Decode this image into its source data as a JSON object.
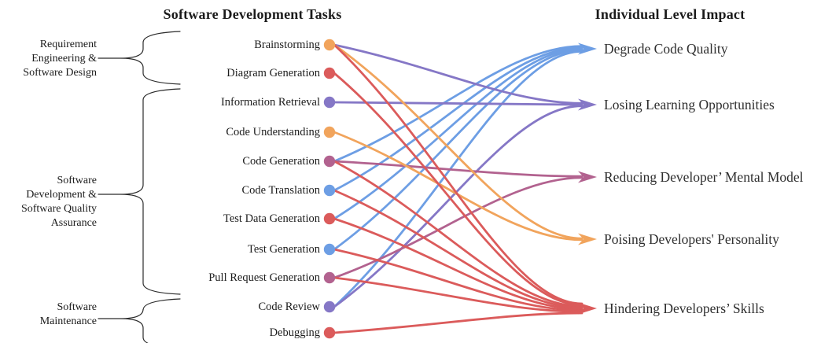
{
  "header": {
    "tasks_title": "Software Development Tasks",
    "impact_title": "Individual Level Impact"
  },
  "groups": [
    {
      "label": "Requirement\nEngineering &\nSoftware Design",
      "task_indexes": [
        0,
        1
      ]
    },
    {
      "label": "Software\nDevelopment  &\nSoftware Quality\nAssurance",
      "task_indexes": [
        2,
        3,
        4,
        5,
        6,
        7,
        8
      ]
    },
    {
      "label": "Software\nMaintenance",
      "task_indexes": [
        9,
        10
      ]
    }
  ],
  "tasks": [
    {
      "label": "Brainstorming",
      "dot_color": "#F1A45C"
    },
    {
      "label": "Diagram Generation",
      "dot_color": "#DB5B5B"
    },
    {
      "label": "Information Retrieval",
      "dot_color": "#8577C6"
    },
    {
      "label": "Code Understanding",
      "dot_color": "#F1A45C"
    },
    {
      "label": "Code Generation",
      "dot_color": "#B2628F"
    },
    {
      "label": "Code Translation",
      "dot_color": "#6D9EE4"
    },
    {
      "label": "Test Data Generation",
      "dot_color": "#DB5B5B"
    },
    {
      "label": "Test Generation",
      "dot_color": "#6D9EE4"
    },
    {
      "label": "Pull Request Generation",
      "dot_color": "#B2628F"
    },
    {
      "label": "Code Review",
      "dot_color": "#8577C6"
    },
    {
      "label": "Debugging",
      "dot_color": "#DB5B5B"
    }
  ],
  "impacts": [
    {
      "label": "Degrade Code Quality",
      "color": "#6D9EE4"
    },
    {
      "label": "Losing Learning Opportunities",
      "color": "#8577C6"
    },
    {
      "label": "Reducing Developer’ Mental Model",
      "color": "#B2628F"
    },
    {
      "label": "Poising Developers' Personality",
      "color": "#F1A45C"
    },
    {
      "label": "Hindering Developers’ Skills",
      "color": "#DB5B5B"
    }
  ],
  "edges": [
    {
      "task": 0,
      "impact": 1
    },
    {
      "task": 0,
      "impact": 3
    },
    {
      "task": 0,
      "impact": 4
    },
    {
      "task": 1,
      "impact": 4
    },
    {
      "task": 2,
      "impact": 1
    },
    {
      "task": 3,
      "impact": 3
    },
    {
      "task": 4,
      "impact": 0
    },
    {
      "task": 4,
      "impact": 2
    },
    {
      "task": 4,
      "impact": 4
    },
    {
      "task": 5,
      "impact": 0
    },
    {
      "task": 5,
      "impact": 4
    },
    {
      "task": 6,
      "impact": 0
    },
    {
      "task": 6,
      "impact": 4
    },
    {
      "task": 7,
      "impact": 0
    },
    {
      "task": 7,
      "impact": 4
    },
    {
      "task": 8,
      "impact": 2
    },
    {
      "task": 8,
      "impact": 4
    },
    {
      "task": 9,
      "impact": 0
    },
    {
      "task": 9,
      "impact": 1
    },
    {
      "task": 10,
      "impact": 4
    }
  ],
  "brace_color": "#2b2b2b"
}
